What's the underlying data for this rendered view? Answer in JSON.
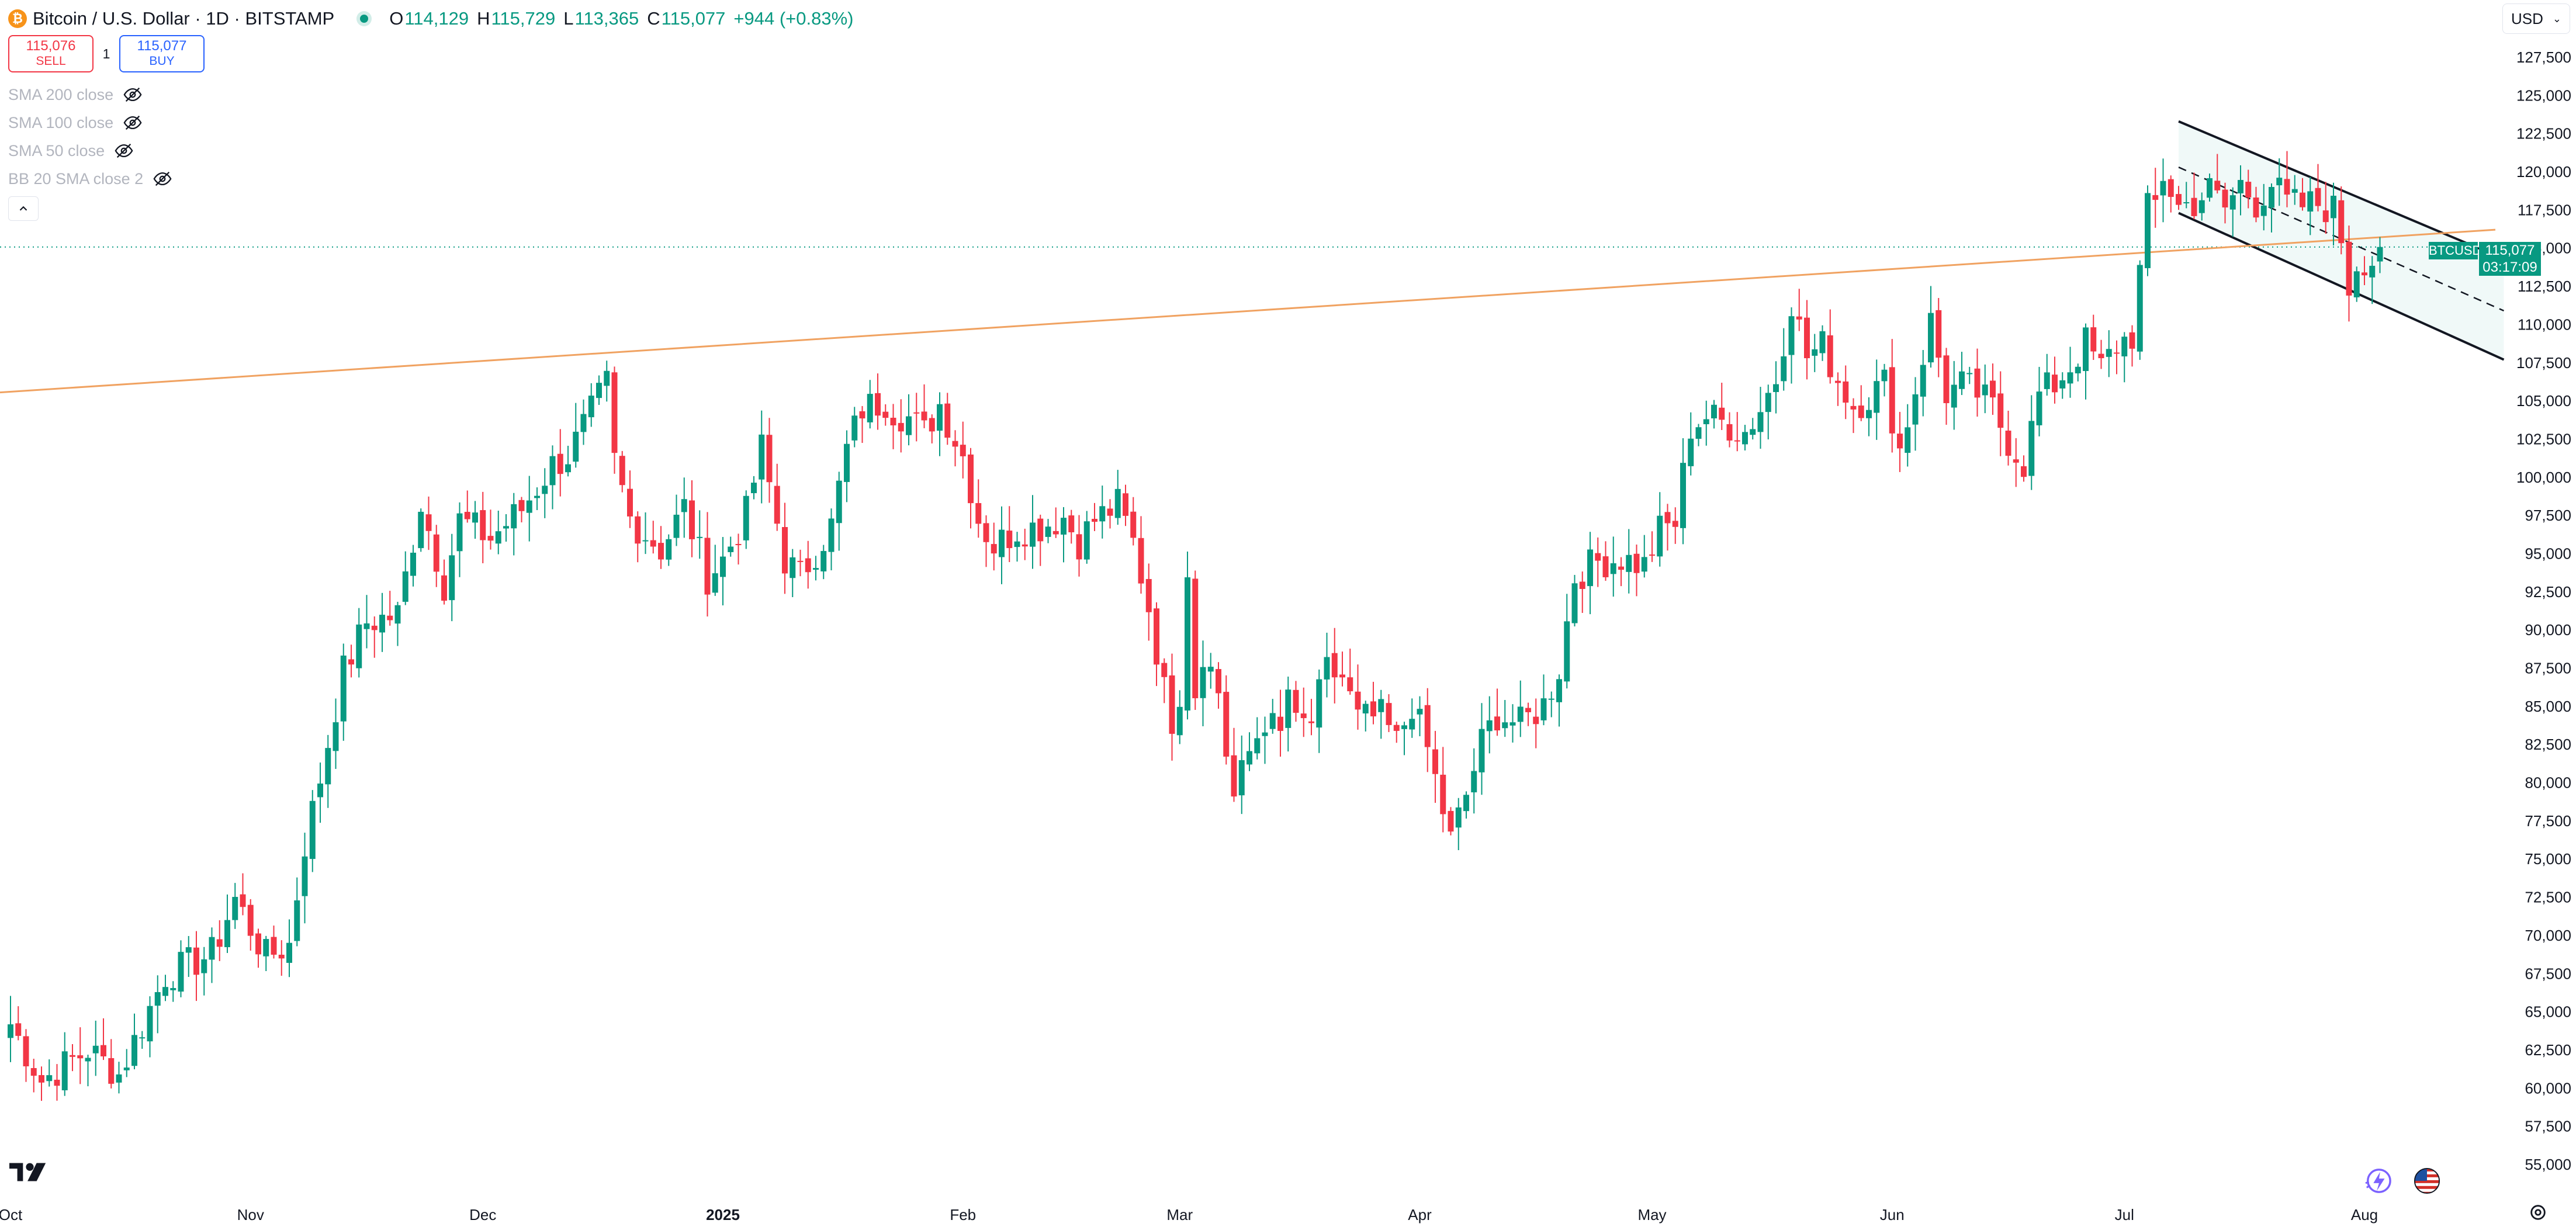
{
  "symbol": {
    "title": "Bitcoin / U.S. Dollar · 1D · BITSTAMP",
    "logo_glyph": "₿"
  },
  "ohlc": {
    "o_label": "O",
    "o": "114,129",
    "h_label": "H",
    "h": "115,729",
    "l_label": "L",
    "l": "113,365",
    "c_label": "C",
    "c": "115,077",
    "change": "+944 (+0.83%)"
  },
  "trade": {
    "sell_price": "115,076",
    "sell_label": "SELL",
    "spread": "1",
    "buy_price": "115,077",
    "buy_label": "BUY"
  },
  "indicators": [
    "SMA 200 close",
    "SMA 100 close",
    "SMA 50 close",
    "BB 20 SMA close 2"
  ],
  "currency": "USD",
  "price_tag": {
    "symbol": "BTCUSD",
    "price": "115,077",
    "countdown": "03:17:09"
  },
  "colors": {
    "up": "#089981",
    "down": "#f23645",
    "trendline": "#f0a261",
    "channel": "#131722",
    "accent": "#2962ff"
  },
  "icons": [
    "bitcoin-logo-icon",
    "eye-off-icon",
    "chevron-up-icon",
    "tradingview-logo-icon",
    "lightning-icon",
    "us-flag-icon",
    "settings-icon"
  ],
  "chart_data": {
    "type": "candlestick",
    "title": "Bitcoin / U.S. Dollar · 1D · BITSTAMP",
    "ylim": [
      54000,
      130500
    ],
    "y_ticks": [
      "127,500",
      "125,000",
      "122,500",
      "120,000",
      "117,500",
      "115,000",
      "112,500",
      "110,000",
      "107,500",
      "105,000",
      "102,500",
      "100,000",
      "97,500",
      "95,000",
      "92,500",
      "90,000",
      "87,500",
      "85,000",
      "82,500",
      "80,000",
      "77,500",
      "75,000",
      "72,500",
      "70,000",
      "67,500",
      "65,000",
      "62,500",
      "60,000",
      "57,500",
      "55,000"
    ],
    "x_labels": [
      {
        "label": "Oct",
        "bar": 0,
        "bold": false
      },
      {
        "label": "Nov",
        "bar": 31,
        "bold": false
      },
      {
        "label": "Dec",
        "bar": 61,
        "bold": false
      },
      {
        "label": "2025",
        "bar": 92,
        "bold": true
      },
      {
        "label": "Feb",
        "bar": 123,
        "bold": false
      },
      {
        "label": "Mar",
        "bar": 151,
        "bold": false
      },
      {
        "label": "Apr",
        "bar": 182,
        "bold": false
      },
      {
        "label": "May",
        "bar": 212,
        "bold": false
      },
      {
        "label": "Jun",
        "bar": 243,
        "bold": false
      },
      {
        "label": "Jul",
        "bar": 273,
        "bold": false
      },
      {
        "label": "Aug",
        "bar": 304,
        "bold": false
      }
    ],
    "keypoints": [
      [
        0,
        64200
      ],
      [
        4,
        60500
      ],
      [
        10,
        62500
      ],
      [
        14,
        60900
      ],
      [
        20,
        67400
      ],
      [
        26,
        68800
      ],
      [
        29,
        72400
      ],
      [
        33,
        68600
      ],
      [
        36,
        69400
      ],
      [
        38,
        76000
      ],
      [
        40,
        80300
      ],
      [
        43,
        87300
      ],
      [
        46,
        90500
      ],
      [
        50,
        91000
      ],
      [
        53,
        98400
      ],
      [
        56,
        93000
      ],
      [
        58,
        97200
      ],
      [
        62,
        96000
      ],
      [
        66,
        97900
      ],
      [
        70,
        100800
      ],
      [
        72,
        101400
      ],
      [
        77,
        106100
      ],
      [
        78,
        101000
      ],
      [
        80,
        97300
      ],
      [
        84,
        95300
      ],
      [
        87,
        98000
      ],
      [
        90,
        93500
      ],
      [
        92,
        94600
      ],
      [
        95,
        97600
      ],
      [
        97,
        101900
      ],
      [
        100,
        94600
      ],
      [
        102,
        93500
      ],
      [
        104,
        95200
      ],
      [
        106,
        96800
      ],
      [
        108,
        101800
      ],
      [
        110,
        104500
      ],
      [
        113,
        105000
      ],
      [
        114,
        104400
      ],
      [
        116,
        103900
      ],
      [
        118,
        102900
      ],
      [
        120,
        104800
      ],
      [
        123,
        101400
      ],
      [
        125,
        97300
      ],
      [
        127,
        95500
      ],
      [
        130,
        96600
      ],
      [
        133,
        96800
      ],
      [
        136,
        97400
      ],
      [
        138,
        95800
      ],
      [
        140,
        97200
      ],
      [
        143,
        98200
      ],
      [
        145,
        95700
      ],
      [
        147,
        91500
      ],
      [
        149,
        86000
      ],
      [
        150,
        84200
      ],
      [
        151,
        86000
      ],
      [
        152,
        94200
      ],
      [
        153,
        86000
      ],
      [
        154,
        88700
      ],
      [
        156,
        86000
      ],
      [
        157,
        82000
      ],
      [
        158,
        79000
      ],
      [
        160,
        82000
      ],
      [
        162,
        84200
      ],
      [
        164,
        83000
      ],
      [
        165,
        86100
      ],
      [
        166,
        83600
      ],
      [
        168,
        84000
      ],
      [
        170,
        87300
      ],
      [
        172,
        86900
      ],
      [
        174,
        84100
      ],
      [
        177,
        84300
      ],
      [
        179,
        82600
      ],
      [
        181,
        85200
      ],
      [
        183,
        82200
      ],
      [
        185,
        78200
      ],
      [
        186,
        76200
      ],
      [
        188,
        79200
      ],
      [
        190,
        82600
      ],
      [
        192,
        84500
      ],
      [
        195,
        83800
      ],
      [
        198,
        85100
      ],
      [
        200,
        87500
      ],
      [
        202,
        93500
      ],
      [
        205,
        94500
      ],
      [
        208,
        94700
      ],
      [
        211,
        94200
      ],
      [
        213,
        96500
      ],
      [
        215,
        97000
      ],
      [
        217,
        103300
      ],
      [
        219,
        104000
      ],
      [
        221,
        103600
      ],
      [
        224,
        103000
      ],
      [
        226,
        104500
      ],
      [
        228,
        106500
      ],
      [
        230,
        111600
      ],
      [
        232,
        107900
      ],
      [
        234,
        108600
      ],
      [
        236,
        106400
      ],
      [
        238,
        104700
      ],
      [
        240,
        105300
      ],
      [
        242,
        106200
      ],
      [
        244,
        101800
      ],
      [
        246,
        105800
      ],
      [
        248,
        110200
      ],
      [
        250,
        105500
      ],
      [
        252,
        106000
      ],
      [
        254,
        105500
      ],
      [
        256,
        104500
      ],
      [
        258,
        102400
      ],
      [
        260,
        100900
      ],
      [
        262,
        105400
      ],
      [
        264,
        106100
      ],
      [
        266,
        107300
      ],
      [
        268,
        108800
      ],
      [
        270,
        107100
      ],
      [
        272,
        108700
      ],
      [
        274,
        109300
      ],
      [
        276,
        117500
      ],
      [
        277,
        117900
      ],
      [
        278,
        119800
      ],
      [
        280,
        117700
      ],
      [
        282,
        118000
      ],
      [
        284,
        118800
      ],
      [
        286,
        117600
      ],
      [
        288,
        119200
      ],
      [
        290,
        118000
      ],
      [
        292,
        119300
      ],
      [
        294,
        117900
      ],
      [
        296,
        117800
      ],
      [
        298,
        117900
      ],
      [
        300,
        117500
      ],
      [
        301,
        115700
      ],
      [
        302,
        112500
      ],
      [
        303,
        114100
      ],
      [
        304,
        114300
      ],
      [
        305,
        114200
      ],
      [
        306,
        115077
      ]
    ],
    "price_line": 115077,
    "trendline": {
      "from": [
        0,
        105600
      ],
      "to": [
        360,
        117500
      ]
    },
    "channel": {
      "upper": [
        [
          280,
          123300
        ],
        [
          322,
          114300
        ]
      ],
      "lower": [
        [
          280,
          117300
        ],
        [
          322,
          107700
        ]
      ],
      "mid": [
        [
          280,
          120300
        ],
        [
          322,
          110900
        ]
      ]
    }
  }
}
